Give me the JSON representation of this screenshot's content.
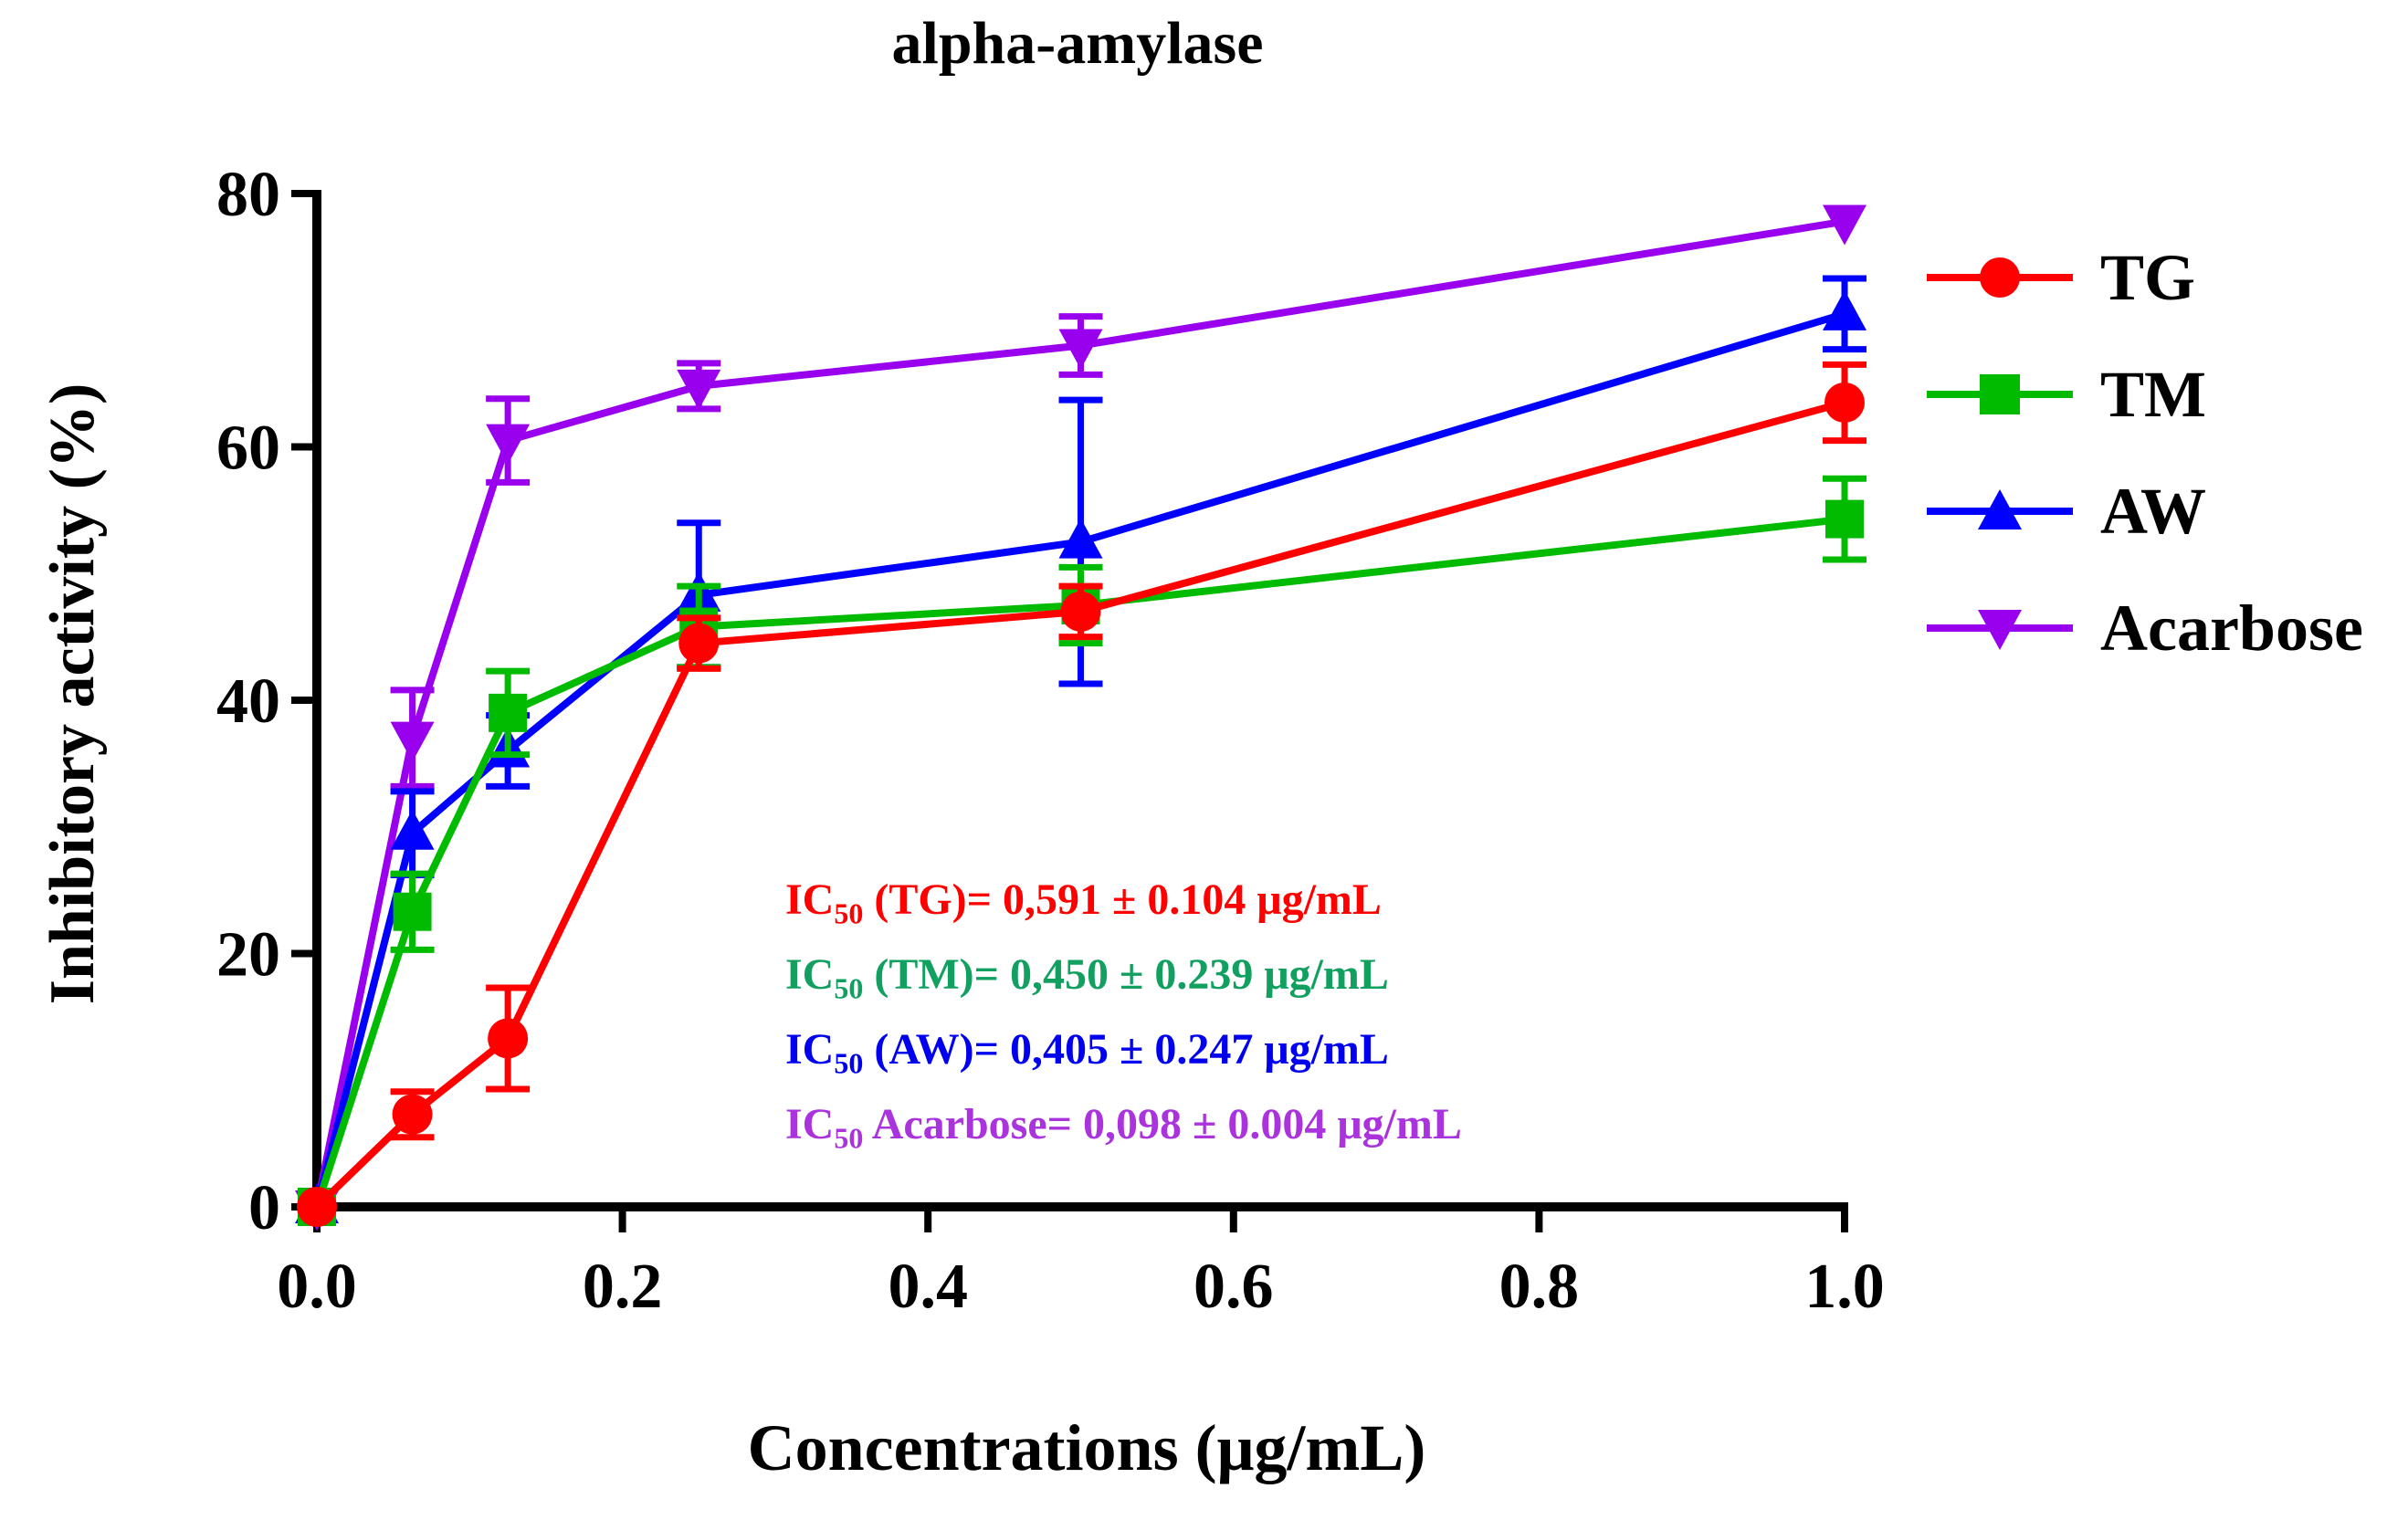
{
  "chart_data": {
    "type": "line",
    "title": "alpha-amylase",
    "xlabel": "Concentrations (μg/mL)",
    "ylabel": "Inhibitory activity (%)",
    "xlim": [
      0,
      1.0
    ],
    "ylim": [
      0,
      80
    ],
    "x_ticks": [
      "0.0",
      "0.2",
      "0.4",
      "0.6",
      "0.8",
      "1.0"
    ],
    "y_ticks": [
      "0",
      "20",
      "40",
      "60",
      "80"
    ],
    "grid": false,
    "legend_position": "right",
    "series": [
      {
        "name": "TG",
        "color": "#ff0000",
        "marker": "circle",
        "x": [
          0,
          0.0625,
          0.125,
          0.25,
          0.5,
          1.0
        ],
        "y": [
          0,
          7.3,
          13.3,
          44.5,
          47.0,
          63.5
        ],
        "err": [
          0,
          1.8,
          4.0,
          2.0,
          2.0,
          3.0
        ]
      },
      {
        "name": "TM",
        "color": "#00bb00",
        "marker": "square",
        "x": [
          0,
          0.0625,
          0.125,
          0.25,
          0.5,
          1.0
        ],
        "y": [
          0,
          23.3,
          39.0,
          45.8,
          47.5,
          54.3
        ],
        "err": [
          0,
          3.0,
          3.3,
          3.2,
          3.0,
          3.2
        ]
      },
      {
        "name": "AW",
        "color": "#0000ff",
        "marker": "triangle-up",
        "x": [
          0,
          0.0625,
          0.125,
          0.25,
          0.5,
          1.0
        ],
        "y": [
          0,
          29.5,
          36.0,
          48.3,
          52.5,
          70.5
        ],
        "err": [
          0,
          3.3,
          2.8,
          5.7,
          11.2,
          2.8
        ]
      },
      {
        "name": "Acarbose",
        "color": "#9900ee",
        "marker": "triangle-down",
        "x": [
          0,
          0.0625,
          0.125,
          0.25,
          0.5,
          1.0
        ],
        "y": [
          0,
          37.0,
          60.5,
          64.8,
          68.0,
          77.8
        ],
        "err": [
          0,
          3.8,
          3.3,
          1.8,
          2.3,
          0
        ]
      }
    ],
    "annotations": [
      {
        "prefix": "IC",
        "sub": "50",
        "text": " (TG)= 0,591 ± 0.104 μg/mL",
        "color": "#ff0000"
      },
      {
        "prefix": "IC",
        "sub": "50",
        "text": " (TM)= 0,450 ± 0.239 μg/mL",
        "color": "#11a060"
      },
      {
        "prefix": "IC",
        "sub": "50",
        "text": " (AW)= 0,405 ± 0.247 μg/mL",
        "color": "#0000ee"
      },
      {
        "prefix": "IC",
        "sub": "50",
        "text": " Acarbose= 0,098 ± 0.004 μg/mL",
        "color": "#aa33dd"
      }
    ]
  }
}
